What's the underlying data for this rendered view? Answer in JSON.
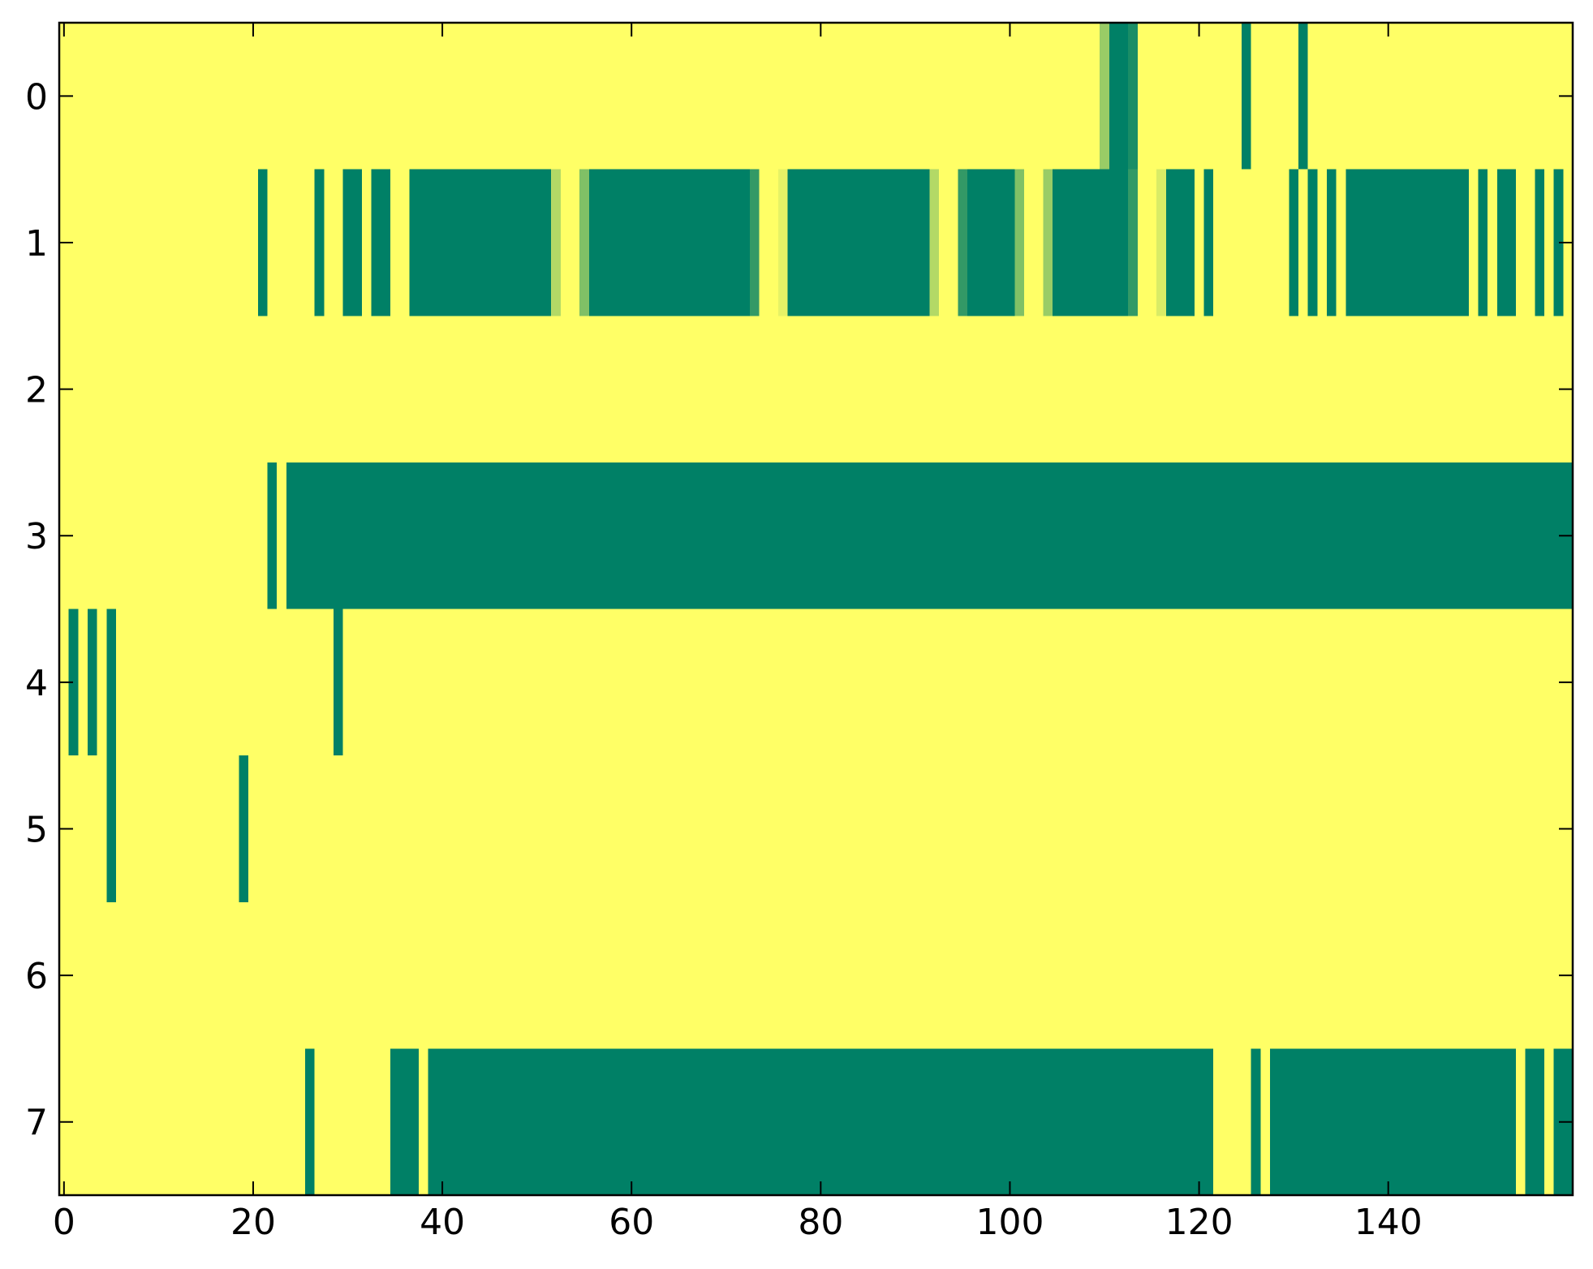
{
  "chart_data": {
    "type": "heatmap",
    "xlim": [
      -0.5,
      159.5
    ],
    "ylim": [
      7.5,
      -0.5
    ],
    "xticks": [
      0,
      20,
      40,
      60,
      80,
      100,
      120,
      140
    ],
    "yticks": [
      0,
      1,
      2,
      3,
      4,
      5,
      6,
      7
    ],
    "colors": [
      "#008066",
      "#ffff66"
    ],
    "clim": [
      0,
      1
    ],
    "values": [
      [
        1,
        1,
        1,
        1,
        1,
        1,
        1,
        1,
        1,
        1,
        1,
        1,
        1,
        1,
        1,
        1,
        1,
        1,
        1,
        1,
        1,
        1,
        1,
        1,
        1,
        1,
        1,
        1,
        1,
        1,
        1,
        1,
        1,
        1,
        1,
        1,
        1,
        1,
        1,
        1,
        1,
        1,
        1,
        1,
        1,
        1,
        1,
        1,
        1,
        1,
        1,
        1,
        1,
        1,
        1,
        1,
        1,
        1,
        1,
        1,
        1,
        1,
        1,
        1,
        1,
        1,
        1,
        1,
        1,
        1,
        1,
        1,
        1,
        1,
        1,
        1,
        1,
        1,
        1,
        1,
        1,
        1,
        1,
        1,
        1,
        1,
        1,
        1,
        1,
        1,
        1,
        1,
        1,
        1,
        1,
        1,
        1,
        1,
        1,
        1,
        1,
        1,
        1,
        1,
        1,
        1,
        1,
        1,
        1,
        1,
        0.6,
        0,
        0,
        0.1,
        1,
        1,
        1,
        1,
        1,
        1,
        1,
        1,
        1,
        1,
        1,
        0,
        1,
        1,
        1,
        1,
        1,
        0,
        1,
        1,
        1,
        1,
        1,
        1,
        1,
        1,
        1,
        1,
        1,
        1,
        1,
        1,
        1,
        1,
        1,
        1,
        1,
        1,
        1,
        1,
        1,
        1,
        1,
        1,
        1,
        1
      ],
      [
        1,
        1,
        1,
        1,
        1,
        1,
        1,
        1,
        1,
        1,
        1,
        1,
        1,
        1,
        1,
        1,
        1,
        1,
        1,
        1,
        1,
        0,
        1,
        1,
        1,
        1,
        1,
        0,
        1,
        1,
        0,
        0,
        1,
        0,
        0,
        1,
        1,
        0,
        0,
        0,
        0,
        0,
        0,
        0,
        0,
        0,
        0,
        0,
        0,
        0,
        0,
        0,
        0.7,
        1,
        1,
        0.5,
        0,
        0,
        0,
        0,
        0,
        0,
        0,
        0,
        0,
        0,
        0,
        0,
        0,
        0,
        0,
        0,
        0,
        0.2,
        1,
        1,
        0.9,
        0,
        0,
        0,
        0,
        0,
        0,
        0,
        0,
        0,
        0,
        0,
        0,
        0,
        0,
        0,
        0.7,
        1,
        1,
        0.2,
        0,
        0,
        0,
        0,
        0,
        0.5,
        1,
        1,
        0.6,
        0,
        0,
        0,
        0,
        0,
        0,
        0,
        0,
        0.2,
        1,
        1,
        0.85,
        0,
        0,
        0,
        1,
        0,
        1,
        1,
        1,
        1,
        1,
        1,
        1,
        1,
        0,
        1,
        0,
        1,
        0,
        1,
        0,
        0,
        0,
        0,
        0,
        0,
        0,
        0,
        0,
        0,
        0,
        0,
        0,
        1,
        0,
        1,
        0,
        0,
        1,
        1,
        0,
        1,
        0,
        1
      ],
      [
        1,
        1,
        1,
        1,
        1,
        1,
        1,
        1,
        1,
        1,
        1,
        1,
        1,
        1,
        1,
        1,
        1,
        1,
        1,
        1,
        1,
        1,
        1,
        1,
        1,
        1,
        1,
        1,
        1,
        1,
        1,
        1,
        1,
        1,
        1,
        1,
        1,
        1,
        1,
        1,
        1,
        1,
        1,
        1,
        1,
        1,
        1,
        1,
        1,
        1,
        1,
        1,
        1,
        1,
        1,
        1,
        1,
        1,
        1,
        1,
        1,
        1,
        1,
        1,
        1,
        1,
        1,
        1,
        1,
        1,
        1,
        1,
        1,
        1,
        1,
        1,
        1,
        1,
        1,
        1,
        1,
        1,
        1,
        1,
        1,
        1,
        1,
        1,
        1,
        1,
        1,
        1,
        1,
        1,
        1,
        1,
        1,
        1,
        1,
        1,
        1,
        1,
        1,
        1,
        1,
        1,
        1,
        1,
        1,
        1,
        1,
        1,
        1,
        1,
        1,
        1,
        1,
        1,
        1,
        1,
        1,
        1,
        1,
        1,
        1,
        1,
        1,
        1,
        1,
        1,
        1,
        1,
        1,
        1,
        1,
        1,
        1,
        1,
        1,
        1,
        1,
        1,
        1,
        1,
        1,
        1,
        1,
        1,
        1,
        1,
        1,
        1,
        1,
        1,
        1,
        1,
        1,
        1,
        1,
        1
      ],
      [
        1,
        1,
        1,
        1,
        1,
        1,
        1,
        1,
        1,
        1,
        1,
        1,
        1,
        1,
        1,
        1,
        1,
        1,
        1,
        1,
        1,
        1,
        0,
        1,
        0,
        0,
        0,
        0,
        0,
        0,
        0,
        0,
        0,
        0,
        0,
        0,
        0,
        0,
        0,
        0,
        0,
        0,
        0,
        0,
        0,
        0,
        0,
        0,
        0,
        0,
        0,
        0,
        0,
        0,
        0,
        0,
        0,
        0,
        0,
        0,
        0,
        0,
        0,
        0,
        0,
        0,
        0,
        0,
        0,
        0,
        0,
        0,
        0,
        0,
        0,
        0,
        0,
        0,
        0,
        0,
        0,
        0,
        0,
        0,
        0,
        0,
        0,
        0,
        0,
        0,
        0,
        0,
        0,
        0,
        0,
        0,
        0,
        0,
        0,
        0,
        0,
        0,
        0,
        0,
        0,
        0,
        0,
        0,
        0,
        0,
        0,
        0,
        0,
        0,
        0,
        0,
        0,
        0,
        0,
        0,
        0,
        0,
        0,
        0,
        0,
        0,
        0,
        0,
        0,
        0,
        0,
        0,
        0,
        0,
        0,
        0,
        0,
        0,
        0,
        0,
        0,
        0,
        0,
        0,
        0,
        0,
        0,
        0,
        0,
        0,
        0,
        0,
        0,
        0,
        0,
        0,
        0,
        0,
        0,
        0
      ],
      [
        1,
        0,
        1,
        0,
        1,
        0,
        1,
        1,
        1,
        1,
        1,
        1,
        1,
        1,
        1,
        1,
        1,
        1,
        1,
        1,
        1,
        1,
        1,
        1,
        1,
        1,
        1,
        1,
        1,
        0,
        1,
        1,
        1,
        1,
        1,
        1,
        1,
        1,
        1,
        1,
        1,
        1,
        1,
        1,
        1,
        1,
        1,
        1,
        1,
        1,
        1,
        1,
        1,
        1,
        1,
        1,
        1,
        1,
        1,
        1,
        1,
        1,
        1,
        1,
        1,
        1,
        1,
        1,
        1,
        1,
        1,
        1,
        1,
        1,
        1,
        1,
        1,
        1,
        1,
        1,
        1,
        1,
        1,
        1,
        1,
        1,
        1,
        1,
        1,
        1,
        1,
        1,
        1,
        1,
        1,
        1,
        1,
        1,
        1,
        1,
        1,
        1,
        1,
        1,
        1,
        1,
        1,
        1,
        1,
        1,
        1,
        1,
        1,
        1,
        1,
        1,
        1,
        1,
        1,
        1,
        1,
        1,
        1,
        1,
        1,
        1,
        1,
        1,
        1,
        1,
        1,
        1,
        1,
        1,
        1,
        1,
        1,
        1,
        1,
        1,
        1,
        1,
        1,
        1,
        1,
        1,
        1,
        1,
        1,
        1,
        1,
        1,
        1,
        1,
        1,
        1,
        1,
        1,
        1,
        1
      ],
      [
        1,
        1,
        1,
        1,
        1,
        0,
        1,
        1,
        1,
        1,
        1,
        1,
        1,
        1,
        1,
        1,
        1,
        1,
        1,
        0,
        1,
        1,
        1,
        1,
        1,
        1,
        1,
        1,
        1,
        1,
        1,
        1,
        1,
        1,
        1,
        1,
        1,
        1,
        1,
        1,
        1,
        1,
        1,
        1,
        1,
        1,
        1,
        1,
        1,
        1,
        1,
        1,
        1,
        1,
        1,
        1,
        1,
        1,
        1,
        1,
        1,
        1,
        1,
        1,
        1,
        1,
        1,
        1,
        1,
        1,
        1,
        1,
        1,
        1,
        1,
        1,
        1,
        1,
        1,
        1,
        1,
        1,
        1,
        1,
        1,
        1,
        1,
        1,
        1,
        1,
        1,
        1,
        1,
        1,
        1,
        1,
        1,
        1,
        1,
        1,
        1,
        1,
        1,
        1,
        1,
        1,
        1,
        1,
        1,
        1,
        1,
        1,
        1,
        1,
        1,
        1,
        1,
        1,
        1,
        1,
        1,
        1,
        1,
        1,
        1,
        1,
        1,
        1,
        1,
        1,
        1,
        1,
        1,
        1,
        1,
        1,
        1,
        1,
        1,
        1,
        1,
        1,
        1,
        1,
        1,
        1,
        1,
        1,
        1,
        1,
        1,
        1,
        1,
        1,
        1,
        1,
        1,
        1,
        1,
        1
      ],
      [
        1,
        1,
        1,
        1,
        1,
        1,
        1,
        1,
        1,
        1,
        1,
        1,
        1,
        1,
        1,
        1,
        1,
        1,
        1,
        1,
        1,
        1,
        1,
        1,
        1,
        1,
        1,
        1,
        1,
        1,
        1,
        1,
        1,
        1,
        1,
        1,
        1,
        1,
        1,
        1,
        1,
        1,
        1,
        1,
        1,
        1,
        1,
        1,
        1,
        1,
        1,
        1,
        1,
        1,
        1,
        1,
        1,
        1,
        1,
        1,
        1,
        1,
        1,
        1,
        1,
        1,
        1,
        1,
        1,
        1,
        1,
        1,
        1,
        1,
        1,
        1,
        1,
        1,
        1,
        1,
        1,
        1,
        1,
        1,
        1,
        1,
        1,
        1,
        1,
        1,
        1,
        1,
        1,
        1,
        1,
        1,
        1,
        1,
        1,
        1,
        1,
        1,
        1,
        1,
        1,
        1,
        1,
        1,
        1,
        1,
        1,
        1,
        1,
        1,
        1,
        1,
        1,
        1,
        1,
        1,
        1,
        1,
        1,
        1,
        1,
        1,
        1,
        1,
        1,
        1,
        1,
        1,
        1,
        1,
        1,
        1,
        1,
        1,
        1,
        1,
        1,
        1,
        1,
        1,
        1,
        1,
        1,
        1,
        1,
        1,
        1,
        1,
        1,
        1,
        1,
        1,
        1,
        1,
        1,
        1
      ],
      [
        1,
        1,
        1,
        1,
        1,
        1,
        1,
        1,
        1,
        1,
        1,
        1,
        1,
        1,
        1,
        1,
        1,
        1,
        1,
        1,
        1,
        1,
        1,
        1,
        1,
        1,
        0,
        1,
        1,
        1,
        1,
        1,
        1,
        1,
        1,
        0,
        0,
        0,
        1,
        0,
        0,
        0,
        0,
        0,
        0,
        0,
        0,
        0,
        0,
        0,
        0,
        0,
        0,
        0,
        0,
        0,
        0,
        0,
        0,
        0,
        0,
        0,
        0,
        0,
        0,
        0,
        0,
        0,
        0,
        0,
        0,
        0,
        0,
        0,
        0,
        0,
        0,
        0,
        0,
        0,
        0,
        0,
        0,
        0,
        0,
        0,
        0,
        0,
        0,
        0,
        0,
        0,
        0,
        0,
        0,
        0,
        0,
        0,
        0,
        0,
        0,
        0,
        0,
        0,
        0,
        0,
        0,
        0,
        0,
        0,
        0,
        0,
        0,
        0,
        0,
        0,
        0,
        0,
        0,
        0,
        0,
        0,
        1,
        1,
        1,
        1,
        0,
        1,
        0,
        0,
        0,
        0,
        0,
        0,
        0,
        0,
        0,
        0,
        0,
        0,
        0,
        0,
        0,
        0,
        0,
        0,
        0,
        0,
        0,
        0,
        0,
        0,
        0,
        0,
        1,
        0,
        0,
        1,
        0,
        0
      ]
    ]
  }
}
